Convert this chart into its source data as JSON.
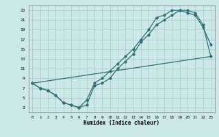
{
  "title": "",
  "xlabel": "Humidex (Indice chaleur)",
  "bg_color": "#cce8e8",
  "grid_color": "#aacccc",
  "line_color": "#2d6e6e",
  "xlim": [
    -0.5,
    23.5
  ],
  "ylim": [
    2,
    24
  ],
  "xticks": [
    0,
    1,
    2,
    3,
    4,
    5,
    6,
    7,
    8,
    9,
    10,
    11,
    12,
    13,
    14,
    15,
    16,
    17,
    18,
    19,
    20,
    21,
    22,
    23
  ],
  "yticks": [
    3,
    5,
    7,
    9,
    11,
    13,
    15,
    17,
    19,
    21,
    23
  ],
  "line1_x": [
    0,
    1,
    2,
    3,
    4,
    5,
    6,
    7,
    8,
    9,
    10,
    11,
    12,
    13,
    14,
    15,
    16,
    17,
    18,
    19,
    20,
    21,
    22,
    23
  ],
  "line1_y": [
    8,
    7,
    6.5,
    5.5,
    4,
    3.5,
    3,
    3.5,
    7.5,
    8,
    9,
    11,
    12.5,
    14,
    16.5,
    18,
    20,
    21,
    22,
    23,
    22.5,
    22,
    19.5,
    16
  ],
  "line2_x": [
    0,
    1,
    2,
    3,
    4,
    5,
    6,
    7,
    8,
    9,
    10,
    11,
    12,
    13,
    14,
    15,
    16,
    17,
    18,
    19,
    20,
    21,
    22,
    23
  ],
  "line2_y": [
    8,
    7,
    6.5,
    5.5,
    4,
    3.5,
    3,
    4.5,
    8,
    9,
    10.5,
    12,
    13.5,
    15,
    17,
    19,
    21.5,
    22,
    23,
    23,
    23,
    22.5,
    20,
    13.5
  ],
  "line3_x": [
    0,
    23
  ],
  "line3_y": [
    8,
    13.5
  ]
}
